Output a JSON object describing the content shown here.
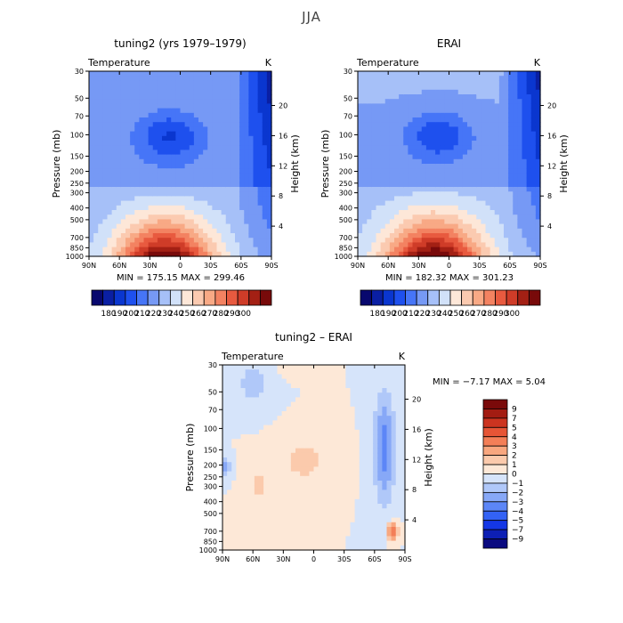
{
  "figure": {
    "title": "JJA"
  },
  "colors": {
    "absolute": [
      "#08086e",
      "#0a1fa3",
      "#0a36cf",
      "#1e50ee",
      "#4675f7",
      "#7699f5",
      "#a6c0f8",
      "#d1e1f9",
      "#fde7d8",
      "#fbcab0",
      "#f8a985",
      "#f38261",
      "#e85a3f",
      "#cf3c28",
      "#a32014",
      "#780a0a"
    ],
    "difference": [
      "#0a0a80",
      "#0d1fb4",
      "#1437e6",
      "#3362f5",
      "#5c86f7",
      "#87a8f7",
      "#b0c8f9",
      "#d6e4fa",
      "#fde8d7",
      "#fbcaac",
      "#f8a77f",
      "#f37f58",
      "#e65536",
      "#cc3420",
      "#a31c12",
      "#7a0a0a"
    ]
  },
  "chart_data": [
    {
      "type": "contour",
      "title": "tuning2 (yrs 1979–1979)",
      "left_label": "Temperature",
      "right_label": "K",
      "ylabel": "Pressure (mb)",
      "y2label": "Height (km)",
      "xticks": [
        "90N",
        "60N",
        "30N",
        "0",
        "30S",
        "60S",
        "90S"
      ],
      "yticks": [
        30,
        50,
        70,
        100,
        150,
        200,
        250,
        300,
        400,
        500,
        700,
        850,
        1000
      ],
      "y2ticks": [
        20,
        16,
        12,
        8,
        4
      ],
      "xlim": [
        "90N",
        "90S"
      ],
      "ylim": [
        1000,
        30
      ],
      "stats": "MIN = 175.15   MAX = 299.46",
      "min": 175.15,
      "max": 299.46,
      "colorbar_labels": [
        "180",
        "190",
        "200",
        "210",
        "220",
        "230",
        "240",
        "250",
        "260",
        "270",
        "280",
        "290",
        "300"
      ]
    },
    {
      "type": "contour",
      "title": "ERAI",
      "left_label": "Temperature",
      "right_label": "K",
      "ylabel": "Pressure (mb)",
      "y2label": "Height (km)",
      "xticks": [
        "90N",
        "60N",
        "30N",
        "0",
        "30S",
        "60S",
        "90S"
      ],
      "yticks": [
        30,
        50,
        70,
        100,
        150,
        200,
        250,
        300,
        400,
        500,
        700,
        850,
        1000
      ],
      "y2ticks": [
        20,
        16,
        12,
        8,
        4
      ],
      "xlim": [
        "90N",
        "90S"
      ],
      "ylim": [
        1000,
        30
      ],
      "stats": "MIN = 182.32   MAX = 301.23",
      "min": 182.32,
      "max": 301.23,
      "colorbar_labels": [
        "180",
        "190",
        "200",
        "210",
        "220",
        "230",
        "240",
        "250",
        "260",
        "270",
        "280",
        "290",
        "300"
      ]
    },
    {
      "type": "contour",
      "title": "tuning2 – ERAI",
      "left_label": "Temperature",
      "right_label": "K",
      "ylabel": "Pressure (mb)",
      "y2label": "Height (km)",
      "xticks": [
        "90N",
        "60N",
        "30N",
        "0",
        "30S",
        "60S",
        "90S"
      ],
      "yticks": [
        30,
        50,
        70,
        100,
        150,
        200,
        250,
        300,
        400,
        500,
        700,
        850,
        1000
      ],
      "y2ticks": [
        20,
        16,
        12,
        8,
        4
      ],
      "xlim": [
        "90N",
        "90S"
      ],
      "ylim": [
        1000,
        30
      ],
      "stats": "MIN =    −7.17   MAX =     5.04",
      "min": -7.17,
      "max": 5.04,
      "colorbar_labels": [
        "9",
        "7",
        "5",
        "4",
        "3",
        "2",
        "1",
        "0",
        "−1",
        "−2",
        "−3",
        "−4",
        "−5",
        "−7",
        "−9"
      ]
    }
  ]
}
